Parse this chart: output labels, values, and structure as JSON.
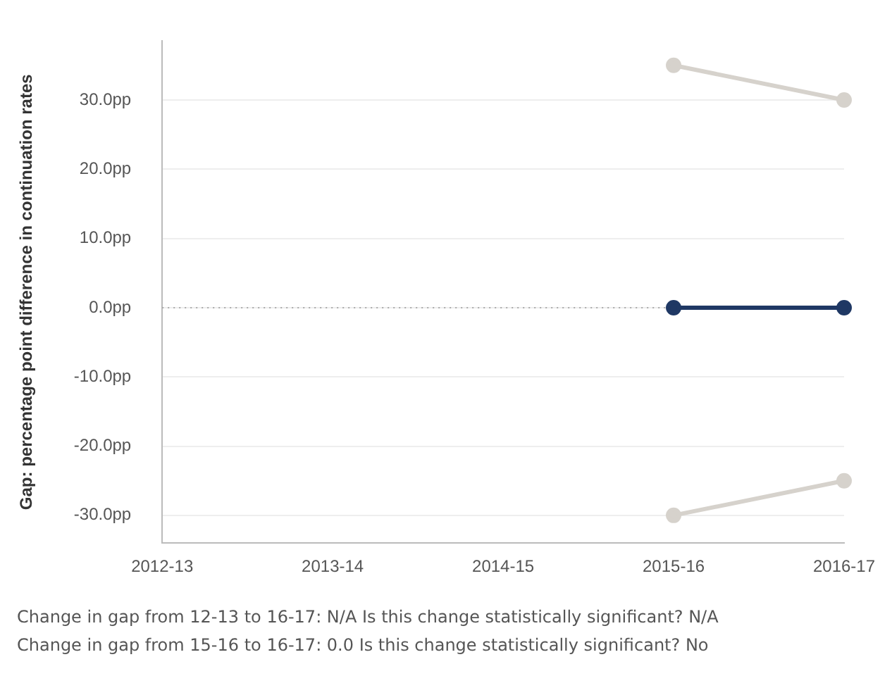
{
  "chart_data": {
    "type": "line",
    "ylabel": "Gap: percentage point difference in continuation rates",
    "categories": [
      "2012-13",
      "2013-14",
      "2014-15",
      "2015-16",
      "2016-17"
    ],
    "series": [
      {
        "color": "#d6d2cc",
        "values": [
          null,
          null,
          null,
          35,
          30
        ]
      },
      {
        "color": "#d6d2cc",
        "values": [
          null,
          null,
          null,
          -30,
          -25
        ]
      },
      {
        "color": "#1f3864",
        "values": [
          null,
          null,
          null,
          0,
          0
        ]
      }
    ],
    "ylim": [
      -34,
      38.5
    ],
    "yticks": [
      {
        "value": -30,
        "label": "-30.0pp"
      },
      {
        "value": -20,
        "label": "-20.0pp"
      },
      {
        "value": -10,
        "label": "-10.0pp"
      },
      {
        "value": 0,
        "label": "0.0pp"
      },
      {
        "value": 10,
        "label": "10.0pp"
      },
      {
        "value": 20,
        "label": "20.0pp"
      },
      {
        "value": 30,
        "label": "30.0pp"
      }
    ],
    "ref_lines": [
      {
        "axis": "y",
        "value": 0,
        "color": "#aaaaaa",
        "line_style": "dotted"
      }
    ],
    "grid": "y",
    "marker": "circle",
    "line_style": "solid",
    "legend": false,
    "annotations": [
      "Change in gap from 12-13 to 16-17:  N/A Is this change statistically significant? N/A",
      "Change in gap from 15-16 to 16-17: 0.0 Is this change statistically significant? No"
    ]
  }
}
